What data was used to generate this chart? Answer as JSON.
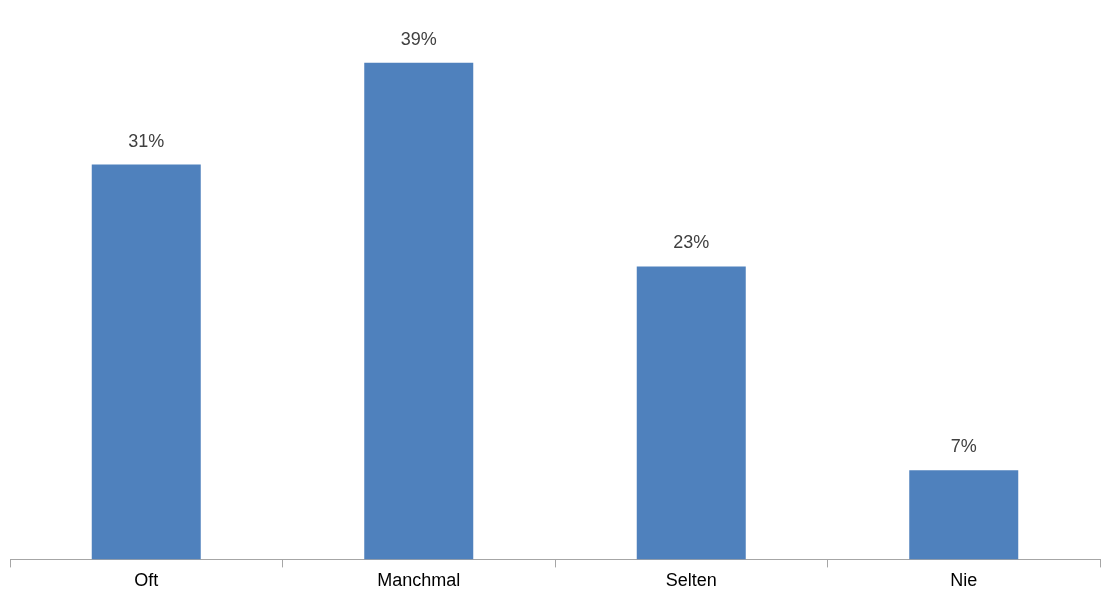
{
  "chart_data": {
    "type": "bar",
    "categories": [
      "Oft",
      "Manchmal",
      "Selten",
      "Nie"
    ],
    "values": [
      31,
      39,
      23,
      7
    ],
    "color": "#4f81bd",
    "value_labels": [
      "31%",
      "39%",
      "23%",
      "7%"
    ],
    "grid": false,
    "legend": false
  }
}
